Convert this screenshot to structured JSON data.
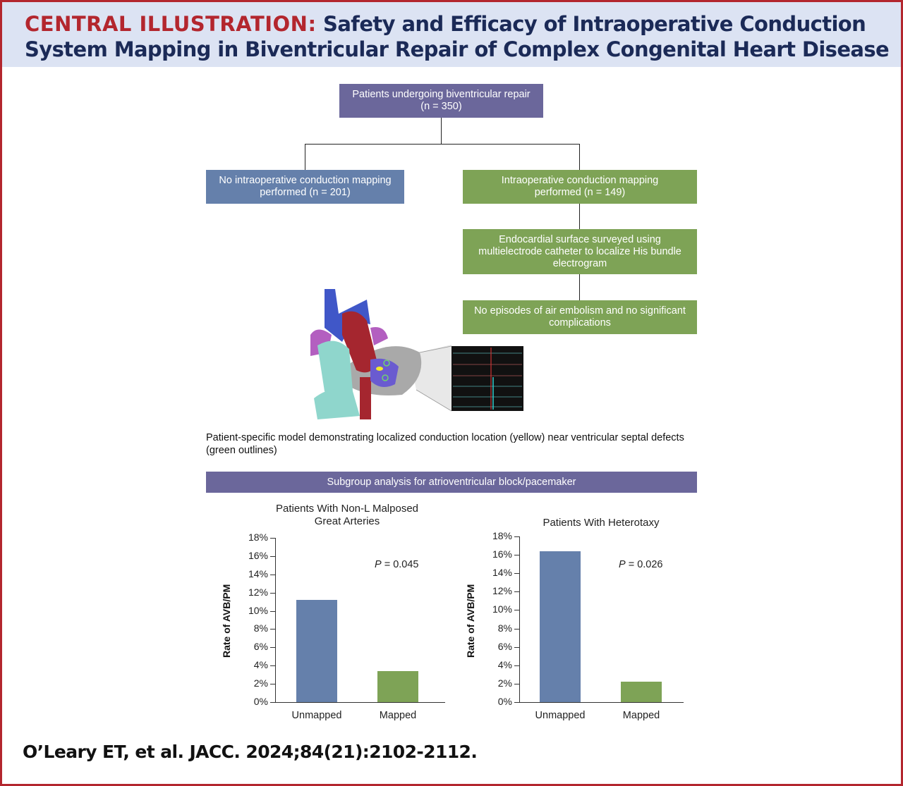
{
  "header": {
    "label": "CENTRAL ILLUSTRATION:",
    "title_line1": "Safety and Efficacy of Intraoperative Conduction",
    "title_line2": "System Mapping in Biventricular Repair of Complex Congenital Heart Disease"
  },
  "flowchart": {
    "root": "Patients undergoing biventricular repair\n(n = 350)",
    "left": "No intraoperative conduction mapping\nperformed (n = 201)",
    "right": "Intraoperative conduction mapping\nperformed (n = 149)",
    "step2": "Endocardial surface surveyed using\nmultielectrode catheter to localize His bundle\nelectrogram",
    "step3": "No episodes of air embolism and no significant\ncomplications"
  },
  "figure": {
    "caption": "Patient-specific model demonstrating localized conduction location (yellow) near ventricular septal defects (green outlines)"
  },
  "subgroup": {
    "banner": "Subgroup analysis for atrioventricular block/pacemaker"
  },
  "colors": {
    "unmapped": "#6580ab",
    "mapped": "#7ea356",
    "purple": "#6b679b",
    "accent": "#b3262e"
  },
  "chart_data": [
    {
      "type": "bar",
      "title": "Patients With Non-L Malposed\nGreat Arteries",
      "categories": [
        "Unmapped",
        "Mapped"
      ],
      "values": [
        11.2,
        3.4
      ],
      "ylabel": "Rate of AVB/PM",
      "xlabel": "",
      "ylim": [
        0,
        18
      ],
      "yticks": [
        "0%",
        "2%",
        "4%",
        "6%",
        "8%",
        "10%",
        "12%",
        "14%",
        "16%",
        "18%"
      ],
      "annotation": "P = 0.045",
      "grid": false
    },
    {
      "type": "bar",
      "title": "Patients With Heterotaxy",
      "categories": [
        "Unmapped",
        "Mapped"
      ],
      "values": [
        16.4,
        2.2
      ],
      "ylabel": "Rate of AVB/PM",
      "xlabel": "",
      "ylim": [
        0,
        18
      ],
      "yticks": [
        "0%",
        "2%",
        "4%",
        "6%",
        "8%",
        "10%",
        "12%",
        "14%",
        "16%",
        "18%"
      ],
      "annotation": "P = 0.026",
      "grid": false
    }
  ],
  "citation": "O’Leary ET, et al. JACC. 2024;84(21):2102-2112."
}
